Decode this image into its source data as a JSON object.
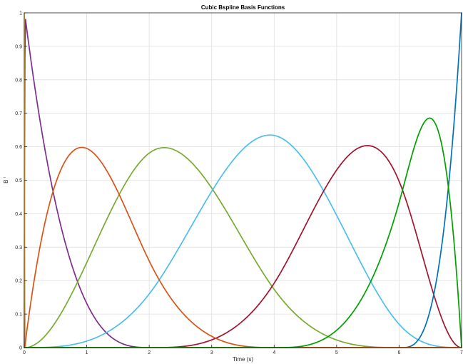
{
  "chart_data": {
    "type": "line",
    "title": "Cubic Bspline Basis Functions",
    "xlabel": "Time (s)",
    "ylabel": "B",
    "ylabel_superscript": "i",
    "xlim": [
      0,
      7
    ],
    "ylim": [
      0,
      1
    ],
    "xticks": [
      0,
      1,
      2,
      3,
      4,
      5,
      6,
      7
    ],
    "yticks": [
      0,
      0.1,
      0.2,
      0.3,
      0.4,
      0.5,
      0.6,
      0.7,
      0.8,
      0.9,
      1
    ],
    "xtick_labels": [
      "0",
      "1",
      "2",
      "3",
      "4",
      "5",
      "6",
      "7"
    ],
    "ytick_labels": [
      "0",
      "0.1",
      "0.2",
      "0.3",
      "0.4",
      "0.5",
      "0.6",
      "0.7",
      "0.8",
      "0.9",
      "1"
    ],
    "grid": true,
    "knots": [
      0,
      0,
      0,
      0,
      0.02,
      2.03,
      4.03,
      6.03,
      7,
      7,
      7,
      7
    ],
    "series": [
      {
        "color": "#7e2f8e",
        "peak": {
          "x": 1.1,
          "y": 0.6
        }
      },
      {
        "color": "#77ac30",
        "peak": {
          "x": 2.55,
          "y": 0.6
        }
      },
      {
        "color": "#4dbeee",
        "peak": {
          "x": 4.25,
          "y": 0.6
        }
      },
      {
        "color": "#a2142f",
        "peak": {
          "x": 5.7,
          "y": 0.6
        }
      },
      {
        "color": "#0072bd",
        "peak": {
          "x": 7,
          "y": 1
        }
      },
      {
        "color": "#edb120",
        "peak": {
          "x": 0.02,
          "y": 0.98
        }
      },
      {
        "color": "#d95319",
        "peak": {
          "x": 0,
          "y": 0.0
        }
      },
      {
        "color": "#00a000",
        "peak": {
          "x": 0,
          "y": 0.0
        }
      }
    ]
  }
}
